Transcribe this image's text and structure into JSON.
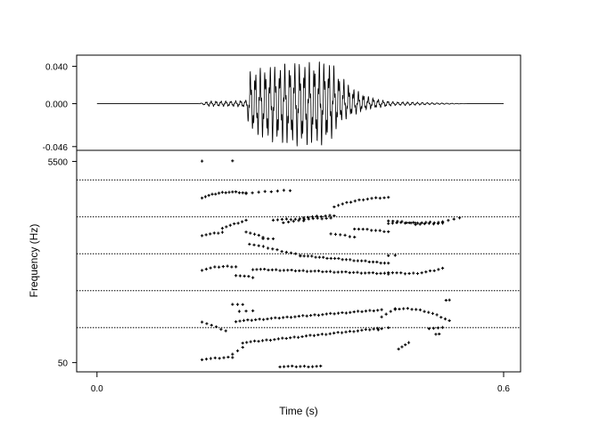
{
  "chart_data": [
    {
      "type": "line",
      "panel": "waveform",
      "title": "",
      "xlabel": "Time (s)",
      "ylabel": "",
      "xlim": [
        -0.03,
        0.625
      ],
      "ylim": [
        -0.05,
        0.052
      ],
      "ytick_labels": [
        "0.040",
        "0.000",
        "-0.046"
      ],
      "ytick_values": [
        0.04,
        0.0,
        -0.046
      ],
      "series": [
        {
          "envelope_t": [
            0.0,
            0.15,
            0.165,
            0.2,
            0.22,
            0.225,
            0.25,
            0.28,
            0.3,
            0.32,
            0.33,
            0.345,
            0.36,
            0.38,
            0.4,
            0.42,
            0.44,
            0.46,
            0.5,
            0.55,
            0.6
          ],
          "envelope_hi": [
            0.0,
            0.0,
            0.003,
            0.003,
            0.004,
            0.036,
            0.04,
            0.044,
            0.045,
            0.045,
            0.047,
            0.046,
            0.03,
            0.016,
            0.008,
            0.004,
            0.002,
            0.002,
            0.001,
            0.0,
            0.0
          ],
          "envelope_lo": [
            0.0,
            0.0,
            -0.003,
            -0.003,
            -0.004,
            -0.03,
            -0.04,
            -0.045,
            -0.046,
            -0.045,
            -0.046,
            -0.04,
            -0.02,
            -0.012,
            -0.006,
            -0.004,
            -0.002,
            -0.002,
            -0.001,
            0.0,
            0.0
          ]
        }
      ]
    },
    {
      "type": "scatter",
      "panel": "formants",
      "title": "",
      "xlabel": "Time (s)",
      "ylabel": "Frequency (Hz)",
      "xlim": [
        -0.03,
        0.625
      ],
      "ylim": [
        -200,
        5800
      ],
      "xtick_labels": [
        "0.0",
        "0.6"
      ],
      "xtick_values": [
        0.0,
        0.6
      ],
      "ytick_labels": [
        "5500",
        "50"
      ],
      "ytick_values": [
        5500,
        50
      ],
      "gridlines_dotted": [
        1000,
        2000,
        3000,
        4000,
        5000
      ],
      "series": [
        {
          "t": [
            0.155,
            0.2
          ],
          "f": [
            5520,
            5520
          ],
          "n": 2
        },
        {
          "t": [
            0.155,
            0.22
          ],
          "f": [
            4520,
            4640
          ],
          "n": 14,
          "shape": "bump",
          "amp": 80
        },
        {
          "t": [
            0.22,
            0.285
          ],
          "f": [
            4640,
            4720
          ],
          "n": 8
        },
        {
          "t": [
            0.275,
            0.305
          ],
          "f": [
            3850,
            3900
          ],
          "n": 5
        },
        {
          "t": [
            0.305,
            0.35
          ],
          "f": [
            3980,
            4040
          ],
          "n": 8
        },
        {
          "t": [
            0.35,
            0.43
          ],
          "f": [
            4280,
            4520
          ],
          "n": 14,
          "shape": "bump",
          "amp": 60
        },
        {
          "t": [
            0.43,
            0.51
          ],
          "f": [
            3830,
            3850
          ],
          "n": 14
        },
        {
          "t": [
            0.51,
            0.535
          ],
          "f": [
            3880,
            3960
          ],
          "n": 4
        },
        {
          "t": [
            0.155,
            0.185
          ],
          "f": [
            3500,
            3580
          ],
          "n": 6
        },
        {
          "t": [
            0.185,
            0.22
          ],
          "f": [
            3700,
            3900
          ],
          "n": 7
        },
        {
          "t": [
            0.22,
            0.245
          ],
          "f": [
            3600,
            3450
          ],
          "n": 5
        },
        {
          "t": [
            0.245,
            0.26
          ],
          "f": [
            3420,
            3400
          ],
          "n": 3
        },
        {
          "t": [
            0.26,
            0.345
          ],
          "f": [
            3920,
            3960
          ],
          "n": 14
        },
        {
          "t": [
            0.345,
            0.38
          ],
          "f": [
            3550,
            3450
          ],
          "n": 6
        },
        {
          "t": [
            0.38,
            0.43
          ],
          "f": [
            3680,
            3600
          ],
          "n": 9
        },
        {
          "t": [
            0.43,
            0.47
          ],
          "f": [
            3900,
            3820
          ],
          "n": 7
        },
        {
          "t": [
            0.47,
            0.51
          ],
          "f": [
            3800,
            3820
          ],
          "n": 7
        },
        {
          "t": [
            0.225,
            0.3
          ],
          "f": [
            3270,
            2960
          ],
          "n": 12
        },
        {
          "t": [
            0.3,
            0.43
          ],
          "f": [
            2950,
            2740
          ],
          "n": 24
        },
        {
          "t": [
            0.43,
            0.44
          ],
          "f": [
            2960,
            2960
          ],
          "n": 2
        },
        {
          "t": [
            0.155,
            0.205
          ],
          "f": [
            2560,
            2650
          ],
          "n": 9,
          "shape": "bump",
          "amp": 40
        },
        {
          "t": [
            0.205,
            0.23
          ],
          "f": [
            2420,
            2360
          ],
          "n": 5
        },
        {
          "t": [
            0.23,
            0.43
          ],
          "f": [
            2580,
            2460
          ],
          "n": 36
        },
        {
          "t": [
            0.43,
            0.51
          ],
          "f": [
            2500,
            2600
          ],
          "n": 14,
          "shape": "dip",
          "amp": 80
        },
        {
          "t": [
            0.2,
            0.215
          ],
          "f": [
            1640,
            1620
          ],
          "n": 3
        },
        {
          "t": [
            0.21,
            0.23
          ],
          "f": [
            1450,
            1450
          ],
          "n": 3
        },
        {
          "t": [
            0.155,
            0.19
          ],
          "f": [
            1160,
            910
          ],
          "n": 6
        },
        {
          "t": [
            0.205,
            0.42
          ],
          "f": [
            1170,
            1480
          ],
          "n": 38
        },
        {
          "t": [
            0.42,
            0.44
          ],
          "f": [
            1300,
            1500
          ],
          "n": 4
        },
        {
          "t": [
            0.44,
            0.52
          ],
          "f": [
            1500,
            1180
          ],
          "n": 14,
          "shape": "bump",
          "amp": 120
        },
        {
          "t": [
            0.515,
            0.52
          ],
          "f": [
            1750,
            1750
          ],
          "n": 2
        },
        {
          "t": [
            0.155,
            0.2
          ],
          "f": [
            140,
            200
          ],
          "n": 8
        },
        {
          "t": [
            0.2,
            0.215
          ],
          "f": [
            290,
            460
          ],
          "n": 3
        },
        {
          "t": [
            0.215,
            0.42
          ],
          "f": [
            590,
            980
          ],
          "n": 36
        },
        {
          "t": [
            0.415,
            0.43
          ],
          "f": [
            950,
            1000
          ],
          "n": 2
        },
        {
          "t": [
            0.445,
            0.46
          ],
          "f": [
            430,
            580
          ],
          "n": 4
        },
        {
          "t": [
            0.49,
            0.51
          ],
          "f": [
            980,
            990
          ],
          "n": 4
        },
        {
          "t": [
            0.5,
            0.505
          ],
          "f": [
            830,
            830
          ],
          "n": 2
        },
        {
          "t": [
            0.27,
            0.33
          ],
          "f": -55,
          "n": 11
        }
      ]
    }
  ]
}
